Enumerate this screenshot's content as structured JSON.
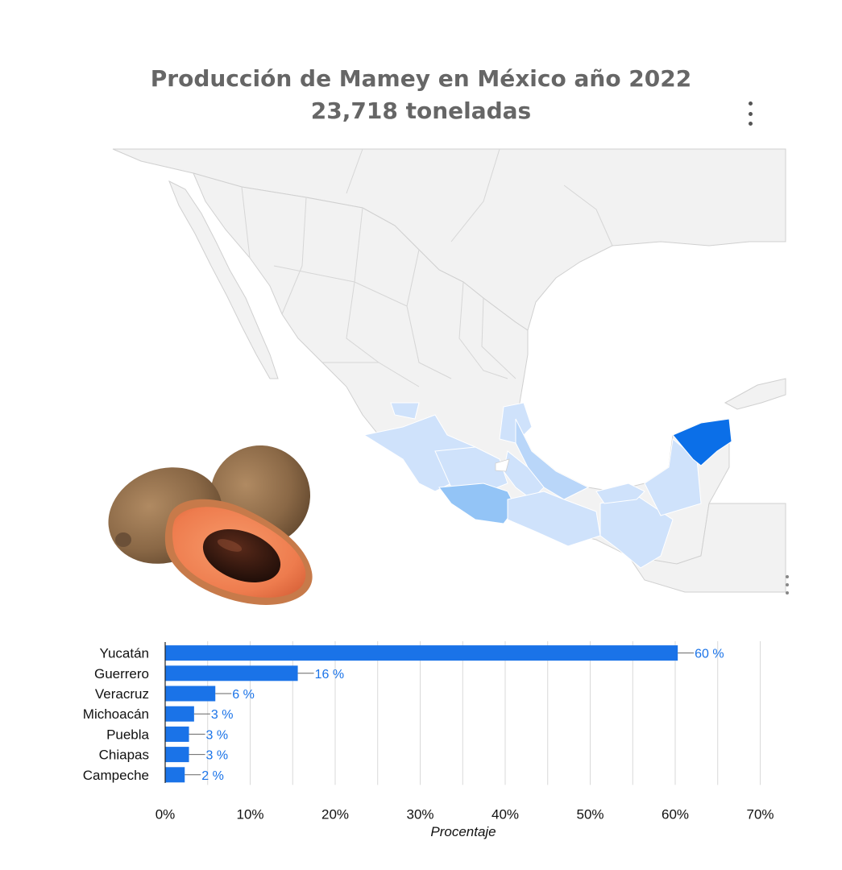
{
  "header": {
    "title_line1": "Producción de Mamey en México año 2022",
    "title_line2": "23,718 toneladas"
  },
  "menu": {
    "icon": "more-vert-icon"
  },
  "map": {
    "highlight_colors": {
      "high": "#0b6fe8",
      "medium": "#93c4f6",
      "low": "#cfe2fb",
      "base": "#f2f2f2"
    }
  },
  "image": {
    "icon": "mamey-fruit-image"
  },
  "chart_data": {
    "type": "bar",
    "orientation": "horizontal",
    "categories": [
      "Yucatán",
      "Guerrero",
      "Veracruz",
      "Michoacán",
      "Puebla",
      "Chiapas",
      "Campeche"
    ],
    "values": [
      60.3,
      15.6,
      5.9,
      3.4,
      2.8,
      2.8,
      2.3
    ],
    "data_labels": [
      "60 %",
      "16 %",
      "6 %",
      "3 %",
      "3 %",
      "3 %",
      "2 %"
    ],
    "xlabel": "Procentaje",
    "xlim": [
      0,
      70
    ],
    "x_ticks": [
      "0%",
      "10%",
      "20%",
      "30%",
      "40%",
      "50%",
      "60%",
      "70%"
    ],
    "grid": true,
    "bar_color": "#1a73e8",
    "label_color": "#1a73e8"
  }
}
